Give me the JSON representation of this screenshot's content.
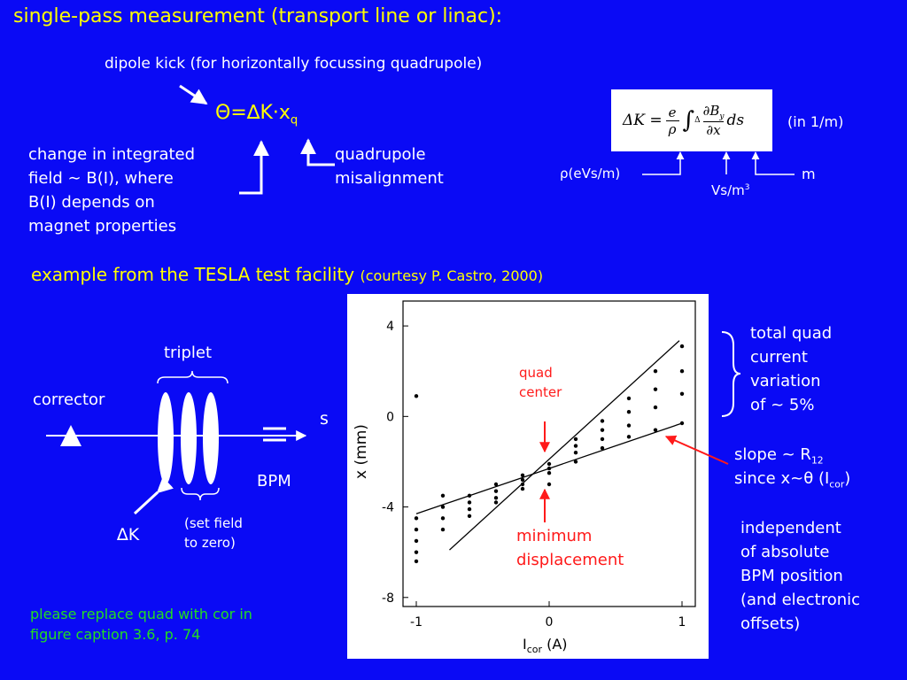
{
  "header": {
    "title": "single-pass measurement (transport line or linac):",
    "subtitle": "dipole kick (for horizontally focussing quadrupole)"
  },
  "kick_formula": {
    "main": "Θ=∆K·x",
    "sub": "q"
  },
  "integrated_field_note": [
    "change in integrated",
    "field ∼ B(I), where",
    "B(I) depends on",
    "magnet properties"
  ],
  "misalignment_note": [
    "quadrupole",
    "misalignment"
  ],
  "dk_formula": {
    "lhs": "ΔK =",
    "num": "e",
    "den": "ρ",
    "integral": "∫",
    "delta": "Δ",
    "dB": "∂B",
    "dB_sub": "y",
    "dx": "∂x",
    "ds": "ds"
  },
  "units": {
    "dk": "(in 1/m)",
    "rho": "ρ(eVs/m)",
    "grad": "Vs/m",
    "grad_sup": "3",
    "length": "m"
  },
  "example": {
    "title": "example from the TESLA test facility",
    "credit": "(courtesy P. Castro, 2000)"
  },
  "schematic": {
    "triplet": "triplet",
    "corrector": "corrector",
    "s": "s",
    "bpm": "BPM",
    "dk": "∆K",
    "set_field": [
      "(set field",
      "to zero)"
    ]
  },
  "footnote": [
    "please replace quad with cor in",
    "figure caption 3.6, p. 74"
  ],
  "plot": {
    "y_label": "x (mm)",
    "x_label": {
      "main": "I",
      "sub": "cor",
      "unit": " (A)"
    },
    "xlim": [
      -1.1,
      1.1
    ],
    "ylim": [
      -8.4,
      5.1
    ],
    "xticks": [
      -1,
      0,
      1
    ],
    "yticks": [
      4,
      0,
      -4,
      -8
    ],
    "quad_center": [
      "quad",
      "center"
    ],
    "min_displacement": [
      "minimum",
      "displacement"
    ],
    "points": {
      "x": [
        -1,
        -1,
        -1,
        -1,
        -1,
        -0.8,
        -0.8,
        -0.8,
        -0.8,
        -0.6,
        -0.6,
        -0.6,
        -0.6,
        -0.4,
        -0.4,
        -0.4,
        -0.4,
        -0.2,
        -0.2,
        -0.2,
        -0.2,
        0,
        0,
        0,
        0,
        0.2,
        0.2,
        0.2,
        0.2,
        0.4,
        0.4,
        0.4,
        0.4,
        0.6,
        0.6,
        0.6,
        0.6,
        0.8,
        0.8,
        0.8,
        0.8,
        1,
        1,
        1,
        1,
        -1
      ],
      "y": [
        -4.5,
        -5.0,
        -5.5,
        -6.0,
        -6.4,
        -3.5,
        -4.0,
        -4.5,
        -5.0,
        -3.5,
        -3.8,
        -4.1,
        -4.4,
        -3.0,
        -3.3,
        -3.6,
        -3.8,
        -2.6,
        -2.8,
        -3.0,
        -3.2,
        -2.1,
        -2.3,
        -2.5,
        -3.0,
        -1.0,
        -1.3,
        -1.6,
        -2.0,
        -0.2,
        -0.6,
        -1.0,
        -1.4,
        0.8,
        0.2,
        -0.4,
        -0.9,
        2.0,
        1.2,
        0.4,
        -0.6,
        3.1,
        2.0,
        1.0,
        -0.3,
        0.9
      ]
    },
    "fit_lines": [
      {
        "x": [
          -0.75,
          0.98
        ],
        "y": [
          -5.9,
          3.35
        ]
      },
      {
        "x": [
          -1,
          1
        ],
        "y": [
          -4.3,
          -0.3
        ]
      }
    ]
  },
  "quad_current_note": [
    "total quad",
    "current",
    "variation",
    "of ~ 5%"
  ],
  "slope_note": {
    "a": "slope ~ R",
    "a_sub": "12",
    "b": "since x~θ (I",
    "b_sub": "cor",
    "b_end": ")"
  },
  "independence_note": [
    "independent",
    "of absolute",
    "BPM position",
    "(and electronic",
    "offsets)"
  ]
}
